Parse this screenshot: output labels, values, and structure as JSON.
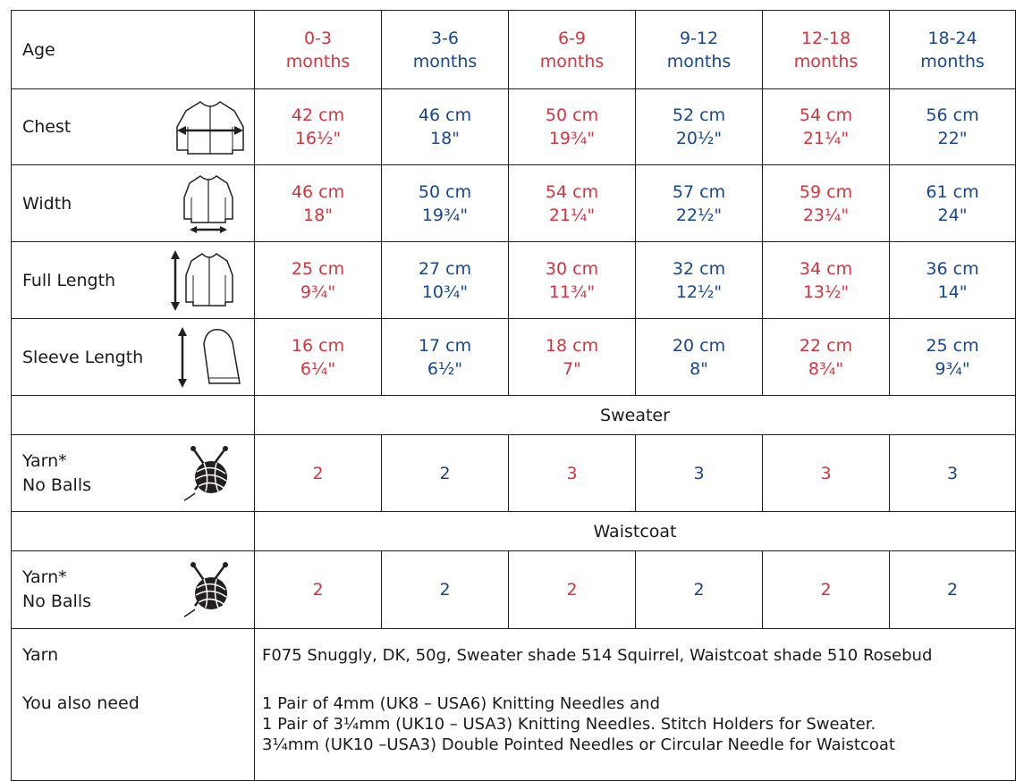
{
  "colors": {
    "red": "#d6333d",
    "blue": "#16468c"
  },
  "header": {
    "label": "Age",
    "sizes": [
      [
        "0-3",
        "months"
      ],
      [
        "3-6",
        "months"
      ],
      [
        "6-9",
        "months"
      ],
      [
        "9-12",
        "months"
      ],
      [
        "12-18",
        "months"
      ],
      [
        "18-24",
        "months"
      ]
    ]
  },
  "measurements": [
    {
      "label": "Chest",
      "icon": "chest-measure-icon",
      "values": [
        [
          "42 cm",
          "16½\""
        ],
        [
          "46 cm",
          "18\""
        ],
        [
          "50 cm",
          "19¾\""
        ],
        [
          "52 cm",
          "20½\""
        ],
        [
          "54 cm",
          "21¼\""
        ],
        [
          "56 cm",
          "22\""
        ]
      ]
    },
    {
      "label": "Width",
      "icon": "width-measure-icon",
      "values": [
        [
          "46 cm",
          "18\""
        ],
        [
          "50 cm",
          "19¾\""
        ],
        [
          "54 cm",
          "21¼\""
        ],
        [
          "57 cm",
          "22½\""
        ],
        [
          "59 cm",
          "23¼\""
        ],
        [
          "61 cm",
          "24\""
        ]
      ]
    },
    {
      "label": "Full Length",
      "icon": "length-measure-icon",
      "values": [
        [
          "25 cm",
          "9¾\""
        ],
        [
          "27 cm",
          "10¾\""
        ],
        [
          "30 cm",
          "11¾\""
        ],
        [
          "32 cm",
          "12½\""
        ],
        [
          "34 cm",
          "13½\""
        ],
        [
          "36 cm",
          "14\""
        ]
      ]
    },
    {
      "label": "Sleeve Length",
      "icon": "sleeve-measure-icon",
      "values": [
        [
          "16 cm",
          "6¼\""
        ],
        [
          "17 cm",
          "6½\""
        ],
        [
          "18 cm",
          "7\""
        ],
        [
          "20 cm",
          "8\""
        ],
        [
          "22 cm",
          "8¾\""
        ],
        [
          "25 cm",
          "9¾\""
        ]
      ]
    }
  ],
  "sweater": {
    "title": "Sweater",
    "yarn_label_1": "Yarn*",
    "yarn_label_2": "No Balls",
    "balls": [
      "2",
      "2",
      "3",
      "3",
      "3",
      "3"
    ]
  },
  "waistcoat": {
    "title": "Waistcoat",
    "yarn_label_1": "Yarn*",
    "yarn_label_2": "No Balls",
    "balls": [
      "2",
      "2",
      "2",
      "2",
      "2",
      "2"
    ]
  },
  "yarn": {
    "label": "Yarn",
    "text": "F075 Snuggly, DK, 50g, Sweater shade 514 Squirrel, Waistcoat shade 510 Rosebud"
  },
  "needs": {
    "label": "You also need",
    "lines": [
      "1 Pair of 4mm (UK8 – USA6) Knitting Needles and",
      "1 Pair of 3¼mm (UK10 – USA3) Knitting Needles. Stitch Holders for Sweater.",
      "3¼mm (UK10 –USA3) Double Pointed Needles or Circular Needle for Waistcoat"
    ]
  }
}
